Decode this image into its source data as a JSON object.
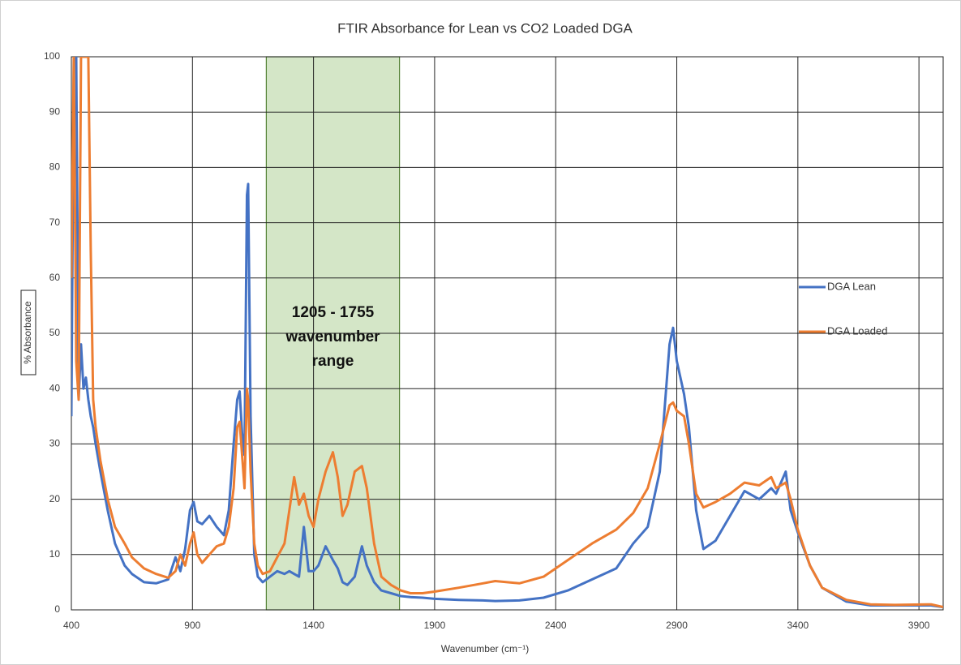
{
  "chart_data": {
    "type": "line",
    "title": "FTIR Absorbance for Lean vs CO2 Loaded DGA",
    "x_label": "Wavenumber (cm⁻¹)",
    "y_label": "% Absorbance",
    "xlim": [
      400,
      4000
    ],
    "xticks": [
      400,
      900,
      1400,
      1900,
      2400,
      2900,
      3400,
      3900
    ],
    "ylim": [
      0,
      100
    ],
    "yticks": [
      0,
      10,
      20,
      30,
      40,
      50,
      60,
      70,
      80,
      90,
      100
    ],
    "grid": true,
    "legend": "right",
    "highlight": {
      "x": [
        1205,
        1755
      ],
      "color": "#70ad47",
      "label": [
        "1205 - 1755",
        "wavenumber",
        "range"
      ]
    },
    "x": [
      400,
      410,
      420,
      430,
      440,
      450,
      460,
      470,
      480,
      490,
      500,
      520,
      550,
      580,
      620,
      650,
      700,
      750,
      800,
      830,
      850,
      870,
      890,
      905,
      920,
      940,
      970,
      1000,
      1030,
      1050,
      1070,
      1085,
      1095,
      1105,
      1115,
      1125,
      1130,
      1140,
      1155,
      1170,
      1190,
      1220,
      1250,
      1280,
      1300,
      1320,
      1340,
      1360,
      1380,
      1400,
      1420,
      1450,
      1480,
      1500,
      1520,
      1540,
      1570,
      1600,
      1620,
      1650,
      1680,
      1720,
      1760,
      1800,
      1850,
      1900,
      2000,
      2100,
      2150,
      2250,
      2350,
      2450,
      2550,
      2650,
      2720,
      2780,
      2830,
      2870,
      2885,
      2900,
      2930,
      2950,
      2980,
      3010,
      3060,
      3120,
      3180,
      3240,
      3290,
      3310,
      3350,
      3370,
      3400,
      3450,
      3500,
      3600,
      3700,
      3800,
      3950,
      4000
    ],
    "series": [
      {
        "name": "DGA Lean",
        "color": "#4472c4",
        "values": [
          35,
          100,
          100,
          38,
          48,
          40,
          42,
          38,
          35,
          33,
          30,
          25,
          18,
          12,
          8,
          6.5,
          5,
          4.8,
          5.5,
          9.5,
          7,
          11,
          18,
          19.5,
          16,
          15.5,
          17,
          15,
          13.5,
          18,
          30,
          38,
          39.5,
          32,
          28,
          75,
          77,
          35,
          10,
          6,
          5,
          6,
          7,
          6.5,
          7,
          6.5,
          6,
          15,
          7,
          7,
          8,
          11.5,
          9,
          7.5,
          5,
          4.5,
          6,
          11.5,
          8,
          5,
          3.5,
          3,
          2.5,
          2.3,
          2.2,
          2,
          1.8,
          1.7,
          1.6,
          1.7,
          2.2,
          3.5,
          5.5,
          7.5,
          12,
          15,
          25,
          48,
          51,
          45,
          39,
          33,
          18,
          11,
          12.5,
          17,
          21.5,
          20,
          22,
          21,
          25,
          18,
          14,
          8,
          4,
          1.5,
          0.8,
          0.8,
          0.8,
          0.5
        ]
      },
      {
        "name": "DGA Loaded",
        "color": "#ed7d31",
        "values": [
          60,
          100,
          45,
          38,
          100,
          100,
          100,
          100,
          65,
          38,
          33,
          27,
          20,
          15,
          12,
          9.5,
          7.5,
          6.5,
          5.8,
          7,
          10,
          8,
          12,
          14,
          10,
          8.5,
          10,
          11.5,
          12,
          15,
          22,
          33,
          34,
          28,
          22,
          40,
          38,
          25,
          12,
          8,
          6.5,
          7,
          9.5,
          12,
          18,
          24,
          19,
          21,
          17,
          15,
          20,
          25,
          28.5,
          24,
          17,
          19,
          25,
          26,
          22,
          12,
          6,
          4.5,
          3.5,
          3,
          3,
          3.3,
          4,
          4.8,
          5.2,
          4.8,
          6,
          9,
          12,
          14.5,
          17.5,
          22,
          30,
          37,
          37.5,
          36,
          35,
          30,
          21,
          18.5,
          19.5,
          21,
          23,
          22.5,
          24,
          22,
          23,
          20,
          14.5,
          8,
          4,
          1.8,
          1,
          0.9,
          1,
          0.5
        ]
      }
    ]
  }
}
